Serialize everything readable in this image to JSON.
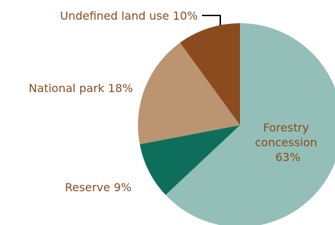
{
  "chart_data": {
    "type": "pie",
    "slices": [
      {
        "label": "Forestry concession 63%",
        "label_lines": [
          "Forestry",
          "concession",
          "63%"
        ],
        "value": 63,
        "color": "#93bfb8",
        "label_color": "#8a4a1c"
      },
      {
        "label": "Reserve 9%",
        "value": 9,
        "color": "#0e6e5c",
        "label_color": "#8a4a1c"
      },
      {
        "label": "National park 18%",
        "value": 18,
        "color": "#bb9472",
        "label_color": "#8a4a1c"
      },
      {
        "label": "Undefined land use 10%",
        "value": 10,
        "color": "#8b4b1f",
        "label_color": "#8a4a1c"
      }
    ],
    "start": "12 o'clock",
    "direction": "clockwise"
  }
}
